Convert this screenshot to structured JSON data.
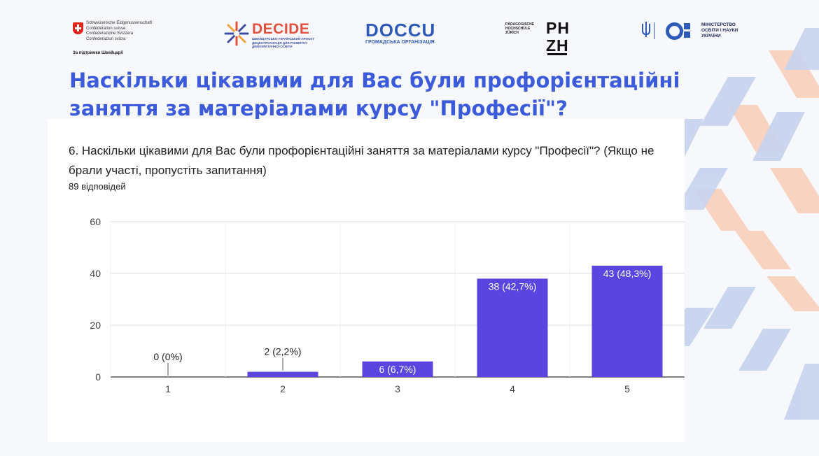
{
  "header": {
    "swiss": {
      "lines": [
        "Schweizerische Eidgenossenschaft",
        "Confédération suisse",
        "Confederazione Svizzera",
        "Confederaziun svizra"
      ],
      "support": "За підтримки Швейцарії"
    },
    "decide": {
      "name": "DECIDE",
      "subtitle": "ШВЕЙЦАРСЬКО-УКРАЇНСЬКИЙ ПРОЄКТ ДЕЦЕНТРАЛІЗАЦІЯ ДЛЯ РОЗВИТКУ ДЕМОКРАТИЧНОЇ ОСВІТИ"
    },
    "doccu": {
      "name": "DOCCU",
      "subtitle": "ГРОМАДСЬКА ОРГАНІЗАЦІЯ"
    },
    "phzh": {
      "small_lines": [
        "PÄDAGOGISCHE",
        "HOCHSCHULE",
        "ZÜRICH"
      ],
      "big_lines": [
        "PH",
        "ZH"
      ]
    },
    "ministry": {
      "lines": [
        "МІНІСТЕРСТВО",
        "ОСВІТИ І НАУКИ",
        "УКРАЇНИ"
      ]
    }
  },
  "slide_title": "Наскільки цікавими для Вас були профорієнтаційні заняття за матеріалами курсу \"Професії\"?",
  "question": "6. Наскільки цікавими для Вас були профорієнтаційні заняття за матеріалами курсу \"Професії\"? (Якщо не брали участі, пропустіть запитання)",
  "responses": "89 відповідей",
  "colors": {
    "bar": "#5a45e0",
    "title": "#3b5bdb",
    "grid": "#dadce0",
    "text": "#444444"
  },
  "chart_data": {
    "type": "bar",
    "categories": [
      "1",
      "2",
      "3",
      "4",
      "5"
    ],
    "values": [
      0,
      2,
      6,
      38,
      43
    ],
    "labels": [
      "0 (0%)",
      "2 (2,2%)",
      "6 (6,7%)",
      "38 (42,7%)",
      "43 (48,3%)"
    ],
    "yticks": [
      0,
      20,
      40,
      60
    ],
    "ylim": [
      0,
      60
    ],
    "grid": true
  }
}
